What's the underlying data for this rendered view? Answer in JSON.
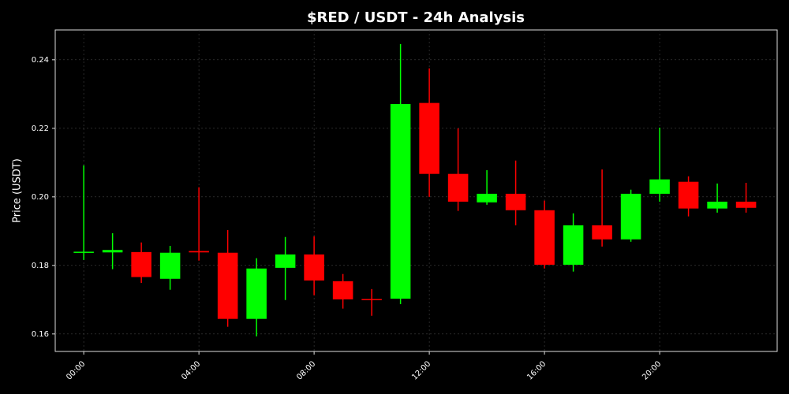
{
  "chart_data": {
    "type": "candlestick",
    "title": "$RED / USDT - 24h Analysis",
    "y_label": "Price (USDT)",
    "categories": [
      "00:00",
      null,
      null,
      null,
      "04:00",
      null,
      null,
      null,
      "08:00",
      null,
      null,
      null,
      "12:00",
      null,
      null,
      null,
      "16:00",
      null,
      null,
      null,
      "20:00",
      null,
      null,
      null
    ],
    "open": [
      0.1838,
      0.1838,
      0.1839,
      0.1761,
      0.1842,
      0.1837,
      0.1644,
      0.1793,
      0.1832,
      0.1754,
      0.1702,
      0.1703,
      0.2274,
      0.2067,
      0.1984,
      0.2009,
      0.1961,
      0.1802,
      0.1917,
      0.1876,
      0.2009,
      0.2044,
      0.1966,
      0.1986
    ],
    "high": [
      0.2092,
      0.1894,
      0.1867,
      0.1857,
      0.2028,
      0.1903,
      0.1821,
      0.1883,
      0.1885,
      0.1775,
      0.1731,
      0.2446,
      0.2375,
      0.22,
      0.2078,
      0.2106,
      0.1989,
      0.1952,
      0.208,
      0.2021,
      0.2202,
      0.206,
      0.2039,
      0.2041
    ],
    "low": [
      0.1816,
      0.1789,
      0.1749,
      0.1729,
      0.1814,
      0.1621,
      0.1593,
      0.1699,
      0.1713,
      0.1674,
      0.1653,
      0.1687,
      0.2,
      0.1959,
      0.1977,
      0.1917,
      0.1791,
      0.1782,
      0.1855,
      0.1869,
      0.1986,
      0.1943,
      0.1954,
      0.1954
    ],
    "close": [
      0.184,
      0.1845,
      0.1766,
      0.1837,
      0.1838,
      0.1644,
      0.1791,
      0.1832,
      0.1756,
      0.1701,
      0.1699,
      0.2271,
      0.2067,
      0.1986,
      0.2009,
      0.1961,
      0.1802,
      0.1917,
      0.1876,
      0.2009,
      0.2051,
      0.1966,
      0.1986,
      0.1968
    ],
    "up_color": "#00ff00",
    "down_color": "#ff0000",
    "ylim": [
      0.1549,
      0.2487
    ],
    "yticks": [
      0.16,
      0.18,
      {
        "value": 0.2,
        "label": "0.20"
      },
      0.22,
      0.24
    ],
    "grid": true
  }
}
